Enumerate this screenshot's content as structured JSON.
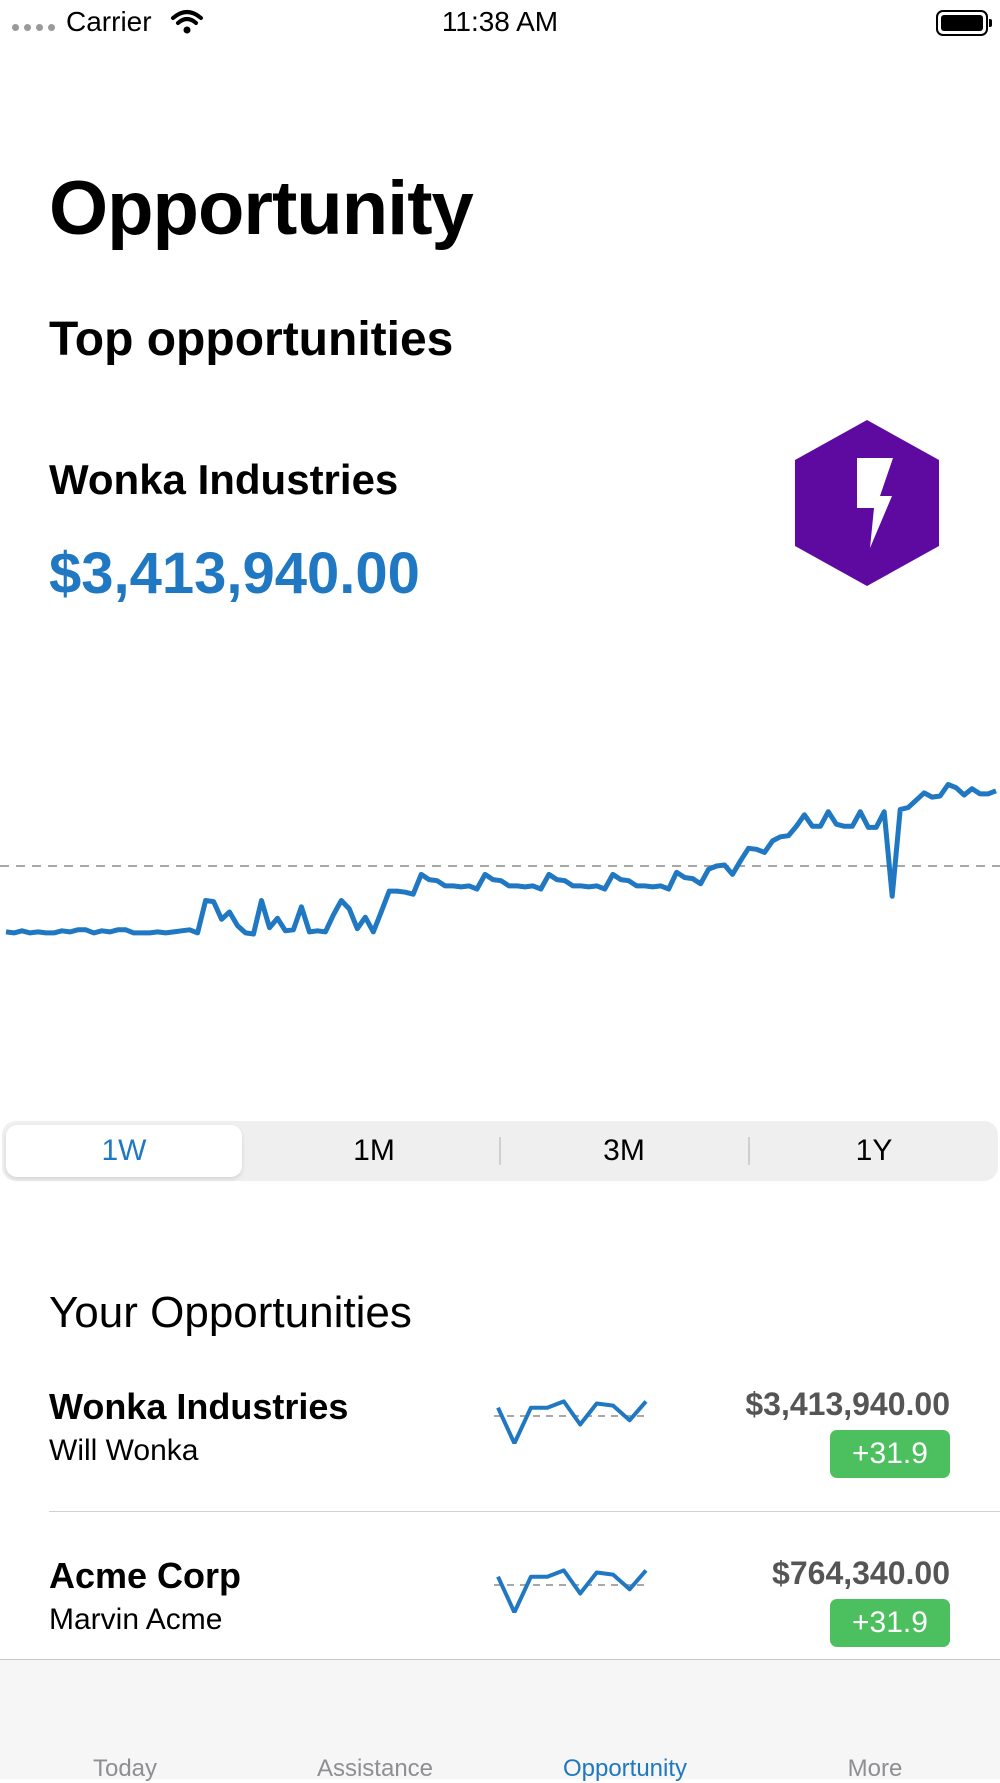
{
  "status_bar": {
    "carrier": "Carrier",
    "time": "11:38 AM"
  },
  "page": {
    "title": "Opportunity"
  },
  "top_section": {
    "title": "Top opportunities",
    "featured": {
      "name": "Wonka Industries",
      "value": "$3,413,940.00",
      "icon": "lightning-hexagon-icon",
      "icon_color": "#5e0aa0"
    }
  },
  "chart_data": {
    "type": "line",
    "color": "#1f78c1",
    "reference_line": "dashed",
    "values": [
      3,
      2,
      4,
      2,
      3,
      2,
      2,
      4,
      3,
      5,
      5,
      2,
      4,
      3,
      5,
      5,
      2,
      2,
      2,
      3,
      2,
      3,
      4,
      5,
      2,
      33,
      32,
      15,
      22,
      9,
      2,
      1,
      33,
      7,
      16,
      4,
      5,
      27,
      3,
      4,
      3,
      19,
      33,
      25,
      6,
      17,
      3,
      22,
      42,
      42,
      41,
      39,
      58,
      53,
      52,
      47,
      47,
      46,
      47,
      44,
      58,
      53,
      52,
      47,
      47,
      46,
      47,
      44,
      58,
      53,
      52,
      47,
      47,
      46,
      47,
      44,
      58,
      53,
      52,
      47,
      47,
      46,
      47,
      44,
      60,
      55,
      54,
      49,
      63,
      66,
      67,
      58,
      71,
      83,
      82,
      79,
      90,
      94,
      95,
      104,
      115,
      104,
      104,
      118,
      106,
      104,
      104,
      118,
      103,
      103,
      118,
      37,
      120,
      122,
      129,
      136,
      132,
      133,
      144,
      141,
      134,
      140,
      135,
      135,
      138
    ]
  },
  "range_selector": {
    "options": [
      "1W",
      "1M",
      "3M",
      "1Y"
    ],
    "selected": "1W"
  },
  "your_opportunities": {
    "title": "Your Opportunities",
    "items": [
      {
        "name": "Wonka Industries",
        "owner": "Will Wonka",
        "amount": "$3,413,940.00",
        "change": "+31.9",
        "spark": [
          3,
          -14,
          3,
          3,
          6,
          -5,
          5,
          4,
          -3,
          6
        ]
      },
      {
        "name": "Acme Corp",
        "owner": "Marvin Acme",
        "amount": "$764,340.00",
        "change": "+31.9",
        "spark": [
          3,
          -14,
          3,
          3,
          6,
          -5,
          5,
          4,
          -3,
          6
        ]
      }
    ]
  },
  "tab_bar": {
    "tabs": [
      {
        "label": "Today",
        "icon": "calendar-icon"
      },
      {
        "label": "Assistance",
        "icon": "assistance-icon"
      },
      {
        "label": "Opportunity",
        "icon": "opportunity-icon"
      },
      {
        "label": "More",
        "icon": "more-icon"
      }
    ],
    "active": "Opportunity"
  }
}
